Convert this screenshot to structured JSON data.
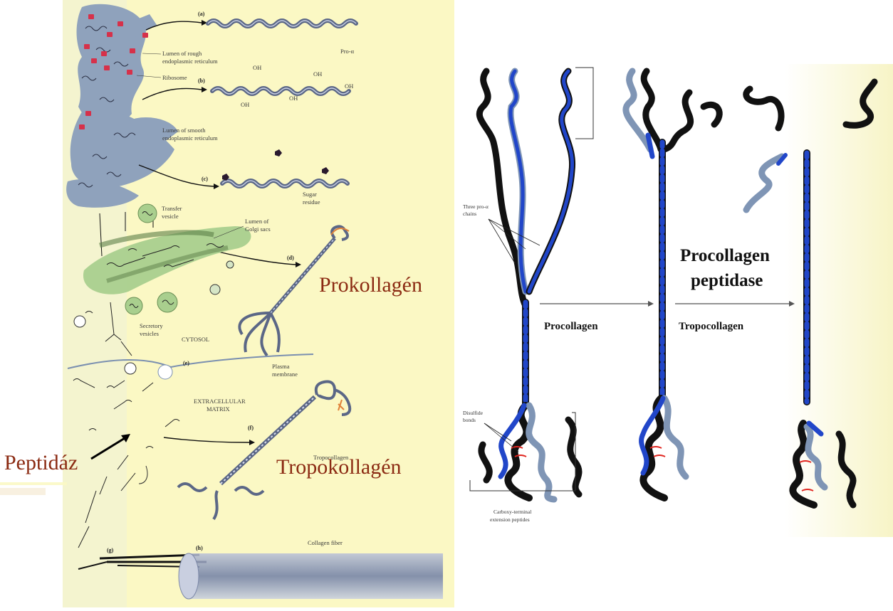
{
  "left_figure": {
    "panel_letters": [
      "(a)",
      "(b)",
      "(c)",
      "(d)",
      "(e)",
      "(f)",
      "(g)",
      "(h)"
    ],
    "labels": {
      "pro_alpha": "Pro-α",
      "lumen_rough_1": "Lumen of rough",
      "lumen_rough_2": "endoplasmic reticulum",
      "ribosome": "Ribosome",
      "lumen_smooth_1": "Lumen of smooth",
      "lumen_smooth_2": "endoplasmic reticulum",
      "sugar_1": "Sugar",
      "sugar_2": "residue",
      "transfer_1": "Transfer",
      "transfer_2": "vesicle",
      "golgi_1": "Lumen of",
      "golgi_2": "Golgi sacs",
      "secretory_1": "Secretory",
      "secretory_2": "vesicles",
      "cytosol": "CYTOSOL",
      "plasma_1": "Plasma",
      "plasma_2": "membrane",
      "ecm_1": "EXTRACELLULAR",
      "ecm_2": "MATRIX",
      "tropocollagen_small": "Tropocollagen",
      "collagen_fiber": "Collagen fiber",
      "oh": "OH"
    }
  },
  "overlay_labels": {
    "prokollagen": "Prokollagén",
    "peptidaz": "Peptidáz",
    "tropokollagen": "Tropokollagén"
  },
  "right_figure": {
    "three_pro_alpha_1": "Three pro-α",
    "three_pro_alpha_2": "chains",
    "disulfide_1": "Disulfide",
    "disulfide_2": "bonds",
    "carboxy_1": "Carboxy-terminal",
    "carboxy_2": "extension peptides",
    "procollagen": "Procollagen",
    "procollagen_peptidase_1": "Procollagen",
    "procollagen_peptidase_2": "peptidase",
    "tropocollagen": "Tropocollagen"
  },
  "colors": {
    "left_background": "#fbf8c4",
    "er_fill": "#8fa2bc",
    "golgi_fill": "#a9cf8e",
    "ribosome": "#d6314a",
    "overlay_text": "#8b2a12",
    "chain_black": "#111111",
    "chain_blue": "#2146c9",
    "chain_grey": "#7f95b5"
  }
}
